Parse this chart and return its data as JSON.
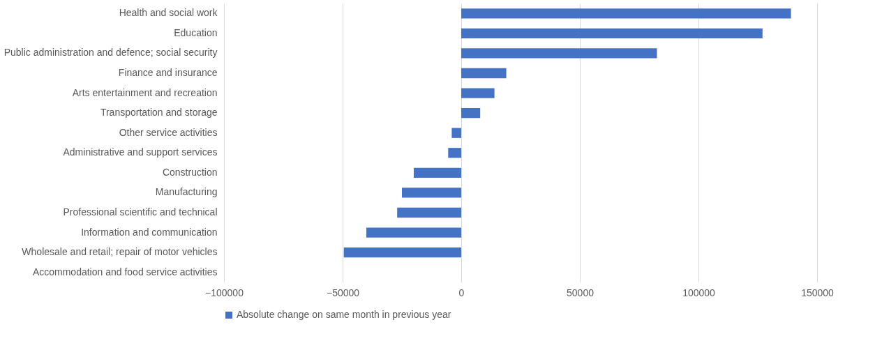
{
  "chart_data": {
    "type": "bar",
    "orientation": "horizontal",
    "categories": [
      "Health and social work",
      "Education",
      "Public administration and defence; social security",
      "Finance and insurance",
      "Arts entertainment and recreation",
      "Transportation and storage",
      "Other service activities",
      "Administrative and support services",
      "Construction",
      "Manufacturing",
      "Professional scientific and technical",
      "Information and communication",
      "Wholesale and retail; repair of motor vehicles",
      "Accommodation and food service activities"
    ],
    "series": [
      {
        "name": "Absolute change on same month in previous year",
        "color": "#4472c4",
        "values": [
          139000,
          127000,
          82500,
          19000,
          14000,
          8000,
          -4000,
          -5500,
          -20000,
          -25000,
          -27000,
          -40000,
          -49500,
          null
        ]
      }
    ],
    "xlim": [
      -100000,
      150000
    ],
    "xticks": [
      -100000,
      -50000,
      0,
      50000,
      100000,
      150000
    ],
    "grid": "x",
    "legend": "bottom"
  }
}
